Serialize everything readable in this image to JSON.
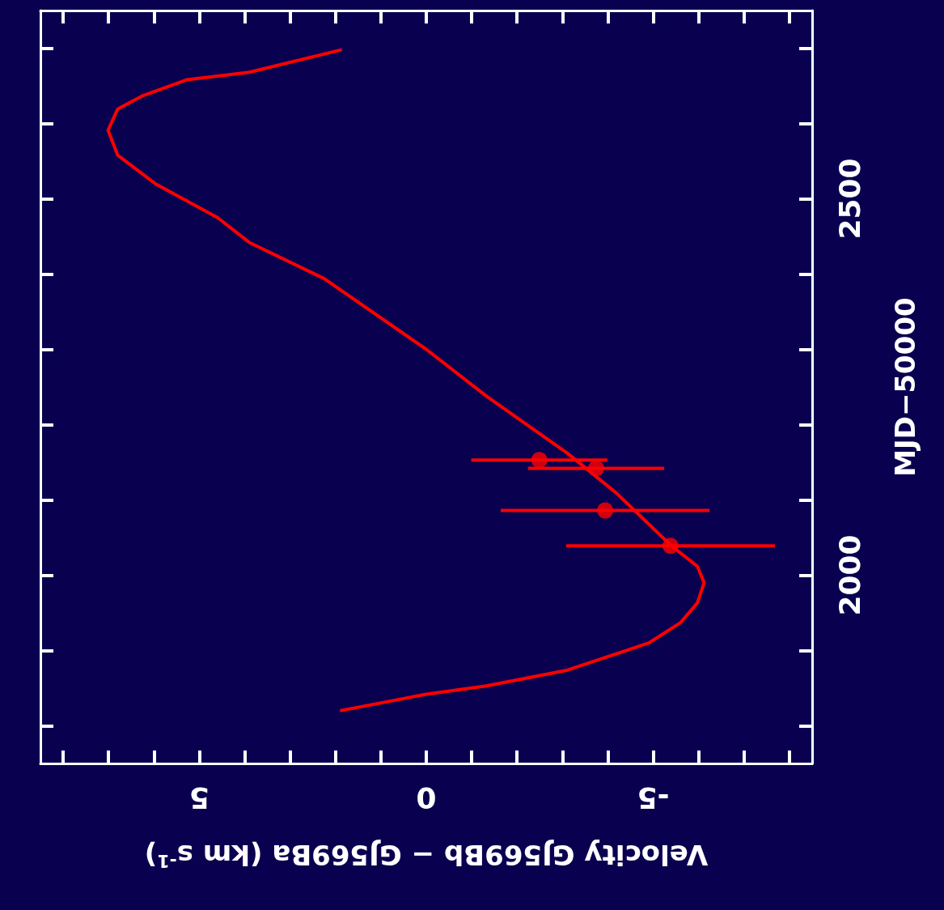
{
  "chart_data": {
    "type": "line",
    "xlabel": "Velocity GJ569Bb − GJ569Ba (km s$^{-1}$)",
    "ylabel": "MJD−50000",
    "xlim": [
      8.5,
      -8.5
    ],
    "xticks": [
      {
        "value": 8,
        "label": null
      },
      {
        "value": 7,
        "label": null
      },
      {
        "value": 6,
        "label": null
      },
      5,
      {
        "value": 4,
        "label": null
      },
      {
        "value": 3,
        "label": null
      },
      {
        "value": 2,
        "label": null
      },
      {
        "value": 1,
        "label": null
      },
      0,
      {
        "value": -1,
        "label": null
      },
      {
        "value": -2,
        "label": null
      },
      {
        "value": -3,
        "label": null
      },
      {
        "value": -4,
        "label": null
      },
      -5,
      {
        "value": -6,
        "label": null
      },
      {
        "value": -7,
        "label": null
      },
      {
        "value": -8,
        "label": null
      }
    ],
    "ylim": [
      1750,
      2750
    ],
    "yticks": [
      {
        "value": 1800,
        "label": null
      },
      {
        "value": 1900,
        "label": null
      },
      2000,
      {
        "value": 2100,
        "label": null
      },
      {
        "value": 2200,
        "label": null
      },
      {
        "value": 2300,
        "label": null
      },
      {
        "value": 2400,
        "label": null
      },
      2500,
      {
        "value": 2600,
        "label": null
      },
      {
        "value": 2700,
        "label": null
      }
    ],
    "grid": false,
    "series": [
      {
        "color": "#ff0000",
        "line_style": "solid",
        "marker": "none",
        "x": [
          1.9,
          0,
          -1.32,
          -3.11,
          -4.9,
          -5.6,
          -5.97,
          -6.12,
          -5.97,
          -5.4,
          -4.19,
          -3.11,
          -1.32,
          0,
          2.25,
          3.9,
          4.6,
          5.97,
          6.8,
          7.01,
          6.8,
          6.24,
          5.28,
          3.9,
          1.86
        ],
        "values": [
          1820,
          1842,
          1853,
          1874,
          1910,
          1937,
          1963,
          1990,
          2012,
          2039,
          2109,
          2162,
          2238,
          2300,
          2394,
          2442,
          2475,
          2520,
          2558,
          2591,
          2619,
          2637,
          2658,
          2668,
          2698
        ]
      },
      {
        "type": "scatter",
        "color": "#ff0000",
        "marker": "circle",
        "x": [
          -2.49,
          -3.74,
          -3.94,
          -5.38
        ],
        "values": [
          2153,
          2142,
          2086,
          2039
        ],
        "xerrors": [
          1.5,
          1.5,
          2.3,
          2.3
        ]
      }
    ]
  }
}
